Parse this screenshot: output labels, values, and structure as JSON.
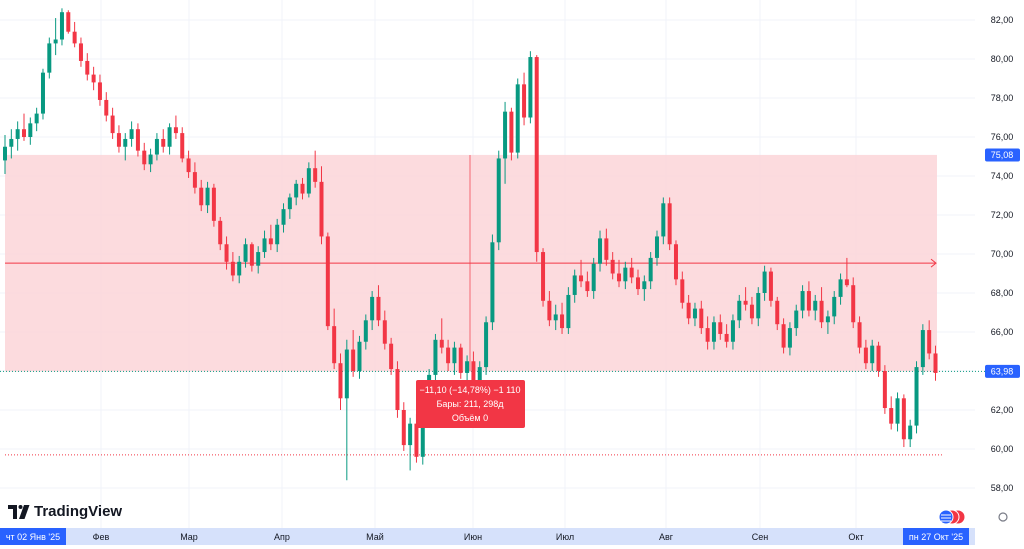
{
  "brand": {
    "name": "TradingView"
  },
  "colors": {
    "up": "#089981",
    "down": "#f23645",
    "range_fill": "#fbd5d8",
    "range_line": "#f23645",
    "tag_blue": "#2962ff",
    "tag_red": "#f23645",
    "axis_band": "#d6e1fb"
  },
  "chart_data": {
    "type": "candlestick",
    "y_axis": {
      "ticks": [
        "82,00",
        "80,00",
        "78,00",
        "76,00",
        "74,00",
        "72,00",
        "70,00",
        "68,00",
        "66,00",
        "64,00",
        "62,00",
        "60,00",
        "58,00"
      ],
      "tick_values": [
        82,
        80,
        78,
        76,
        74,
        72,
        70,
        68,
        66,
        64,
        62,
        60,
        58
      ],
      "range": [
        56.6,
        83.0
      ]
    },
    "x_axis": {
      "labels": [
        "Фев",
        "Мар",
        "Апр",
        "Май",
        "Июн",
        "Июл",
        "Авг",
        "Сен",
        "Окт"
      ],
      "start_label": "чт 02 Янв '25",
      "end_label": "пн 27 Окт '25"
    },
    "price_tags": {
      "upper": "75,08",
      "upper_value": 75.08,
      "last": "63,98",
      "last_value": 63.98
    },
    "measure_box": {
      "line1": "−11,10 (−14,78%) −1 110",
      "line2": "Бары: 211, 298д",
      "line3": "Объём 0"
    },
    "lower_dotted_level": 59.7,
    "candles": [
      [
        74.8,
        76.1,
        74.1,
        75.5
      ],
      [
        75.5,
        76.4,
        74.9,
        75.9
      ],
      [
        75.9,
        76.8,
        75.3,
        76.4
      ],
      [
        76.4,
        77.2,
        75.8,
        76.0
      ],
      [
        76.0,
        77.0,
        75.6,
        76.7
      ],
      [
        76.7,
        77.5,
        76.3,
        77.2
      ],
      [
        77.2,
        79.5,
        76.9,
        79.3
      ],
      [
        79.3,
        81.1,
        79.0,
        80.8
      ],
      [
        80.8,
        82.1,
        80.2,
        81.0
      ],
      [
        81.0,
        82.6,
        80.7,
        82.4
      ],
      [
        82.4,
        82.5,
        81.3,
        81.4
      ],
      [
        81.4,
        81.9,
        80.6,
        80.8
      ],
      [
        80.8,
        81.1,
        79.6,
        79.9
      ],
      [
        79.9,
        80.3,
        78.9,
        79.2
      ],
      [
        79.2,
        79.6,
        78.4,
        78.8
      ],
      [
        78.8,
        79.2,
        77.6,
        77.9
      ],
      [
        77.9,
        78.3,
        76.8,
        77.1
      ],
      [
        77.1,
        77.5,
        75.9,
        76.2
      ],
      [
        76.2,
        76.6,
        75.2,
        75.5
      ],
      [
        75.5,
        76.2,
        74.8,
        75.9
      ],
      [
        75.9,
        76.8,
        75.5,
        76.4
      ],
      [
        76.4,
        76.7,
        75.0,
        75.3
      ],
      [
        75.3,
        75.7,
        74.3,
        74.6
      ],
      [
        74.6,
        75.4,
        74.2,
        75.1
      ],
      [
        75.1,
        76.2,
        74.8,
        75.9
      ],
      [
        75.9,
        76.4,
        75.2,
        75.5
      ],
      [
        75.5,
        76.7,
        75.1,
        76.5
      ],
      [
        76.5,
        77.1,
        75.9,
        76.2
      ],
      [
        76.2,
        76.5,
        74.7,
        74.9
      ],
      [
        74.9,
        75.3,
        73.9,
        74.2
      ],
      [
        74.2,
        74.7,
        73.1,
        73.4
      ],
      [
        73.4,
        73.8,
        72.2,
        72.5
      ],
      [
        72.5,
        73.7,
        72.1,
        73.4
      ],
      [
        73.4,
        73.6,
        71.4,
        71.7
      ],
      [
        71.7,
        71.9,
        70.2,
        70.5
      ],
      [
        70.5,
        70.9,
        69.2,
        69.6
      ],
      [
        69.6,
        70.1,
        68.6,
        68.9
      ],
      [
        68.9,
        69.9,
        68.5,
        69.6
      ],
      [
        69.6,
        70.8,
        69.3,
        70.5
      ],
      [
        70.5,
        70.6,
        69.1,
        69.4
      ],
      [
        69.4,
        70.4,
        69.0,
        70.1
      ],
      [
        70.1,
        71.2,
        69.8,
        70.8
      ],
      [
        70.8,
        71.5,
        70.2,
        70.5
      ],
      [
        70.5,
        71.8,
        70.1,
        71.5
      ],
      [
        71.5,
        72.6,
        71.1,
        72.3
      ],
      [
        72.3,
        73.1,
        71.8,
        72.9
      ],
      [
        72.9,
        73.8,
        72.5,
        73.6
      ],
      [
        73.6,
        73.9,
        72.8,
        73.1
      ],
      [
        73.1,
        74.7,
        72.9,
        74.4
      ],
      [
        74.4,
        75.3,
        73.4,
        73.7
      ],
      [
        73.7,
        74.5,
        70.5,
        70.9
      ],
      [
        70.9,
        71.1,
        66.1,
        66.3
      ],
      [
        66.3,
        67.2,
        64.1,
        64.4
      ],
      [
        64.4,
        64.9,
        62.0,
        62.6
      ],
      [
        62.6,
        65.6,
        58.4,
        65.1
      ],
      [
        65.1,
        66.1,
        63.7,
        64.0
      ],
      [
        64.0,
        65.8,
        63.6,
        65.5
      ],
      [
        65.5,
        66.9,
        65.1,
        66.6
      ],
      [
        66.6,
        68.1,
        66.1,
        67.8
      ],
      [
        67.8,
        68.4,
        66.3,
        66.6
      ],
      [
        66.6,
        67.1,
        65.1,
        65.4
      ],
      [
        65.4,
        65.7,
        63.8,
        64.1
      ],
      [
        64.1,
        64.5,
        61.6,
        62.0
      ],
      [
        62.0,
        62.4,
        59.9,
        60.2
      ],
      [
        60.2,
        61.6,
        58.9,
        61.3
      ],
      [
        61.3,
        61.8,
        59.3,
        59.6
      ],
      [
        59.6,
        62.9,
        59.2,
        62.6
      ],
      [
        62.6,
        64.1,
        62.1,
        63.8
      ],
      [
        63.8,
        65.9,
        63.3,
        65.6
      ],
      [
        65.6,
        66.7,
        64.9,
        65.2
      ],
      [
        65.2,
        65.6,
        64.0,
        64.4
      ],
      [
        64.4,
        65.5,
        63.8,
        65.2
      ],
      [
        65.2,
        65.4,
        63.6,
        63.9
      ],
      [
        63.9,
        64.8,
        63.5,
        64.5
      ],
      [
        64.5,
        65.0,
        63.0,
        63.3
      ],
      [
        63.3,
        64.5,
        62.9,
        64.2
      ],
      [
        64.2,
        66.8,
        63.8,
        66.5
      ],
      [
        66.5,
        71.0,
        66.1,
        70.6
      ],
      [
        70.6,
        75.3,
        70.2,
        74.9
      ],
      [
        74.9,
        77.8,
        73.6,
        77.3
      ],
      [
        77.3,
        77.5,
        74.8,
        75.2
      ],
      [
        75.2,
        79.0,
        74.9,
        78.7
      ],
      [
        78.7,
        79.3,
        76.6,
        77.0
      ],
      [
        77.0,
        80.4,
        76.7,
        80.1
      ],
      [
        80.1,
        80.2,
        69.6,
        70.1
      ],
      [
        70.1,
        70.3,
        67.3,
        67.6
      ],
      [
        67.6,
        68.1,
        66.3,
        66.6
      ],
      [
        66.6,
        67.4,
        66.1,
        66.9
      ],
      [
        66.9,
        67.5,
        65.9,
        66.2
      ],
      [
        66.2,
        68.3,
        65.9,
        67.9
      ],
      [
        67.9,
        69.2,
        67.5,
        68.9
      ],
      [
        68.9,
        69.7,
        68.3,
        68.6
      ],
      [
        68.6,
        69.1,
        67.8,
        68.1
      ],
      [
        68.1,
        69.8,
        67.7,
        69.5
      ],
      [
        69.5,
        71.2,
        69.1,
        70.8
      ],
      [
        70.8,
        71.3,
        69.4,
        69.7
      ],
      [
        69.7,
        70.1,
        68.7,
        69.0
      ],
      [
        69.0,
        69.7,
        68.3,
        68.6
      ],
      [
        68.6,
        69.6,
        68.2,
        69.3
      ],
      [
        69.3,
        69.8,
        68.5,
        68.8
      ],
      [
        68.8,
        69.2,
        67.9,
        68.2
      ],
      [
        68.2,
        68.9,
        67.6,
        68.6
      ],
      [
        68.6,
        70.1,
        68.2,
        69.8
      ],
      [
        69.8,
        71.2,
        69.4,
        70.9
      ],
      [
        70.9,
        72.9,
        70.5,
        72.6
      ],
      [
        72.6,
        72.9,
        70.2,
        70.5
      ],
      [
        70.5,
        70.7,
        68.4,
        68.7
      ],
      [
        68.7,
        69.1,
        67.2,
        67.5
      ],
      [
        67.5,
        67.9,
        66.4,
        66.7
      ],
      [
        66.7,
        67.5,
        66.3,
        67.2
      ],
      [
        67.2,
        67.6,
        65.9,
        66.2
      ],
      [
        66.2,
        66.8,
        65.1,
        65.5
      ],
      [
        65.5,
        66.8,
        65.1,
        66.5
      ],
      [
        66.5,
        66.9,
        65.6,
        65.9
      ],
      [
        65.9,
        66.4,
        65.2,
        65.5
      ],
      [
        65.5,
        66.9,
        65.1,
        66.6
      ],
      [
        66.6,
        67.9,
        66.2,
        67.6
      ],
      [
        67.6,
        68.3,
        67.1,
        67.4
      ],
      [
        67.4,
        67.8,
        66.4,
        66.7
      ],
      [
        66.7,
        68.3,
        66.3,
        68.0
      ],
      [
        68.0,
        69.4,
        67.6,
        69.1
      ],
      [
        69.1,
        69.3,
        67.3,
        67.6
      ],
      [
        67.6,
        67.8,
        66.1,
        66.4
      ],
      [
        66.4,
        66.7,
        64.9,
        65.2
      ],
      [
        65.2,
        66.5,
        64.8,
        66.2
      ],
      [
        66.2,
        67.4,
        65.8,
        67.1
      ],
      [
        67.1,
        68.4,
        66.7,
        68.1
      ],
      [
        68.1,
        68.6,
        66.8,
        67.1
      ],
      [
        67.1,
        67.9,
        66.6,
        67.6
      ],
      [
        67.6,
        68.3,
        66.2,
        66.5
      ],
      [
        66.5,
        67.1,
        65.9,
        66.8
      ],
      [
        66.8,
        68.1,
        66.4,
        67.8
      ],
      [
        67.8,
        69.0,
        67.4,
        68.7
      ],
      [
        68.7,
        69.8,
        68.3,
        68.4
      ],
      [
        68.4,
        68.8,
        66.2,
        66.5
      ],
      [
        66.5,
        66.8,
        64.9,
        65.2
      ],
      [
        65.2,
        65.6,
        64.1,
        64.4
      ],
      [
        64.4,
        65.6,
        64.0,
        65.3
      ],
      [
        65.3,
        65.5,
        63.7,
        64.0
      ],
      [
        64.0,
        64.3,
        61.8,
        62.1
      ],
      [
        62.1,
        62.7,
        61.0,
        61.3
      ],
      [
        61.3,
        62.9,
        60.9,
        62.6
      ],
      [
        62.6,
        62.8,
        60.1,
        60.5
      ],
      [
        60.5,
        61.5,
        60.1,
        61.2
      ],
      [
        61.2,
        64.5,
        60.8,
        64.2
      ],
      [
        64.2,
        66.4,
        63.8,
        66.1
      ],
      [
        66.1,
        66.6,
        64.6,
        64.9
      ],
      [
        64.9,
        65.3,
        63.5,
        63.9
      ]
    ]
  }
}
